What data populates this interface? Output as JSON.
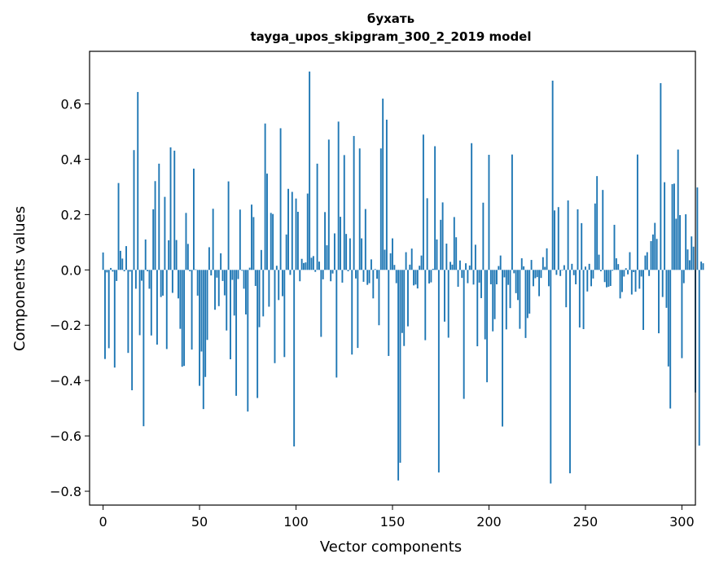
{
  "chart_data": {
    "type": "bar",
    "title": "бухать",
    "subtitle": "tayga_upos_skipgram_300_2_2019 model",
    "xlabel": "Vector components",
    "ylabel": "Components values",
    "xlim": [
      -7,
      307
    ],
    "ylim": [
      -0.85,
      0.79
    ],
    "xticks": [
      0,
      50,
      100,
      150,
      200,
      250,
      300
    ],
    "yticks": [
      -0.8,
      -0.6,
      -0.4,
      -0.2,
      0.0,
      0.2,
      0.4,
      0.6
    ],
    "ytick_labels": [
      "−0.8",
      "−0.6",
      "−0.4",
      "−0.2",
      "0.0",
      "0.2",
      "0.4",
      "0.6"
    ],
    "grid": false,
    "bar_color": "#1f77b4",
    "values": [
      0.063,
      -0.322,
      -0.009,
      -0.283,
      0.007,
      -0.006,
      -0.353,
      -0.04,
      0.314,
      0.069,
      0.041,
      -0.005,
      0.086,
      -0.3,
      -0.006,
      -0.435,
      0.433,
      -0.068,
      0.643,
      -0.236,
      -0.039,
      -0.565,
      0.11,
      -0.005,
      -0.068,
      -0.237,
      0.219,
      0.321,
      -0.27,
      0.384,
      -0.098,
      -0.093,
      0.264,
      -0.286,
      0.107,
      0.443,
      -0.083,
      0.431,
      0.108,
      -0.103,
      -0.213,
      -0.35,
      -0.347,
      0.206,
      0.094,
      -0.005,
      -0.288,
      0.366,
      0.002,
      -0.093,
      -0.419,
      -0.295,
      -0.503,
      -0.387,
      -0.253,
      0.082,
      -0.02,
      0.221,
      -0.144,
      -0.028,
      -0.131,
      0.06,
      -0.04,
      -0.092,
      -0.219,
      0.32,
      -0.323,
      -0.036,
      -0.165,
      -0.455,
      -0.033,
      0.218,
      -0.003,
      -0.068,
      -0.161,
      -0.512,
      0.008,
      0.236,
      0.191,
      -0.058,
      -0.463,
      -0.207,
      0.072,
      -0.168,
      0.529,
      0.348,
      -0.133,
      0.206,
      0.202,
      -0.337,
      0.015,
      -0.109,
      0.512,
      -0.095,
      -0.315,
      0.128,
      0.293,
      -0.018,
      0.282,
      -0.638,
      0.258,
      0.21,
      -0.041,
      0.04,
      0.025,
      0.027,
      0.276,
      0.717,
      0.044,
      0.05,
      -0.007,
      0.384,
      0.03,
      -0.242,
      -0.034,
      0.209,
      0.089,
      0.471,
      -0.041,
      -0.013,
      0.132,
      -0.389,
      0.536,
      0.192,
      -0.046,
      0.415,
      0.13,
      -0.005,
      0.114,
      -0.306,
      0.484,
      -0.031,
      -0.282,
      0.439,
      0.114,
      -0.043,
      0.22,
      -0.054,
      -0.048,
      0.038,
      -0.103,
      0.003,
      -0.032,
      -0.2,
      0.439,
      0.619,
      0.073,
      0.543,
      -0.311,
      0.06,
      0.114,
      0.018,
      -0.048,
      -0.761,
      -0.697,
      -0.228,
      -0.275,
      0.064,
      -0.204,
      0.019,
      0.077,
      -0.056,
      -0.053,
      -0.067,
      0.015,
      0.052,
      0.489,
      -0.254,
      0.259,
      -0.049,
      -0.045,
      0.004,
      0.447,
      0.11,
      -0.732,
      0.181,
      0.244,
      -0.187,
      0.095,
      -0.245,
      0.029,
      0.019,
      0.191,
      0.118,
      -0.061,
      0.034,
      -0.029,
      -0.466,
      0.024,
      -0.048,
      0.016,
      0.458,
      -0.053,
      0.091,
      -0.276,
      -0.046,
      -0.102,
      0.243,
      -0.251,
      -0.406,
      0.416,
      -0.052,
      -0.222,
      -0.178,
      -0.052,
      0.014,
      0.052,
      -0.566,
      -0.027,
      -0.215,
      -0.054,
      -0.138,
      0.417,
      -0.012,
      -0.084,
      -0.109,
      -0.213,
      0.042,
      0.013,
      -0.246,
      -0.174,
      -0.158,
      0.036,
      -0.059,
      -0.03,
      -0.026,
      -0.095,
      -0.029,
      0.046,
      0.011,
      0.078,
      -0.059,
      -0.772,
      0.684,
      0.215,
      -0.018,
      0.227,
      -0.022,
      -0.002,
      0.017,
      -0.135,
      0.251,
      -0.735,
      0.022,
      -0.019,
      -0.052,
      0.219,
      -0.208,
      0.169,
      -0.214,
      0.012,
      -0.078,
      0.022,
      -0.059,
      -0.031,
      0.24,
      0.339,
      0.055,
      -0.005,
      0.289,
      -0.044,
      -0.063,
      -0.061,
      -0.058,
      -0.003,
      0.163,
      0.042,
      0.021,
      -0.103,
      -0.08,
      -0.024,
      0.006,
      -0.016,
      0.064,
      -0.089,
      -0.008,
      -0.079,
      0.417,
      -0.068,
      -0.024,
      -0.217,
      0.052,
      0.064,
      -0.022,
      0.104,
      0.128,
      0.17,
      0.112,
      -0.229,
      0.675,
      -0.098,
      0.317,
      -0.137,
      -0.349,
      -0.501,
      0.31,
      0.312,
      0.185,
      0.435,
      0.198,
      -0.319,
      -0.048,
      0.201,
      0.074,
      0.035,
      0.121,
      0.084,
      -0.443,
      0.298,
      -0.635,
      0.03,
      0.024
    ]
  }
}
